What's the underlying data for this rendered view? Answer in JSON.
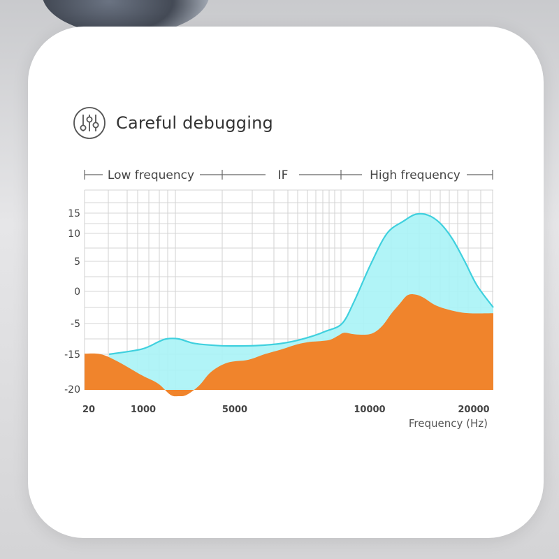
{
  "header": {
    "title": "Careful debugging",
    "icon": "sliders-icon"
  },
  "colors": {
    "high_curve": "#3fd0de",
    "high_fill": "#a9f3f6",
    "low_fill": "#f0842c",
    "grid": "#d4d4d4",
    "text": "#444444"
  },
  "chart_data": {
    "type": "area",
    "bands": [
      {
        "label": "Low frequency"
      },
      {
        "label": "IF"
      },
      {
        "label": "High frequency"
      }
    ],
    "x_ticks": [
      "20",
      "1000",
      "5000",
      "10000",
      "20000"
    ],
    "y_ticks": [
      "15",
      "10",
      "5",
      "0",
      "-5",
      "-15",
      "-20"
    ],
    "xlabel": "Frequency (Hz)",
    "ylabel": "",
    "grid": true,
    "series": [
      {
        "color": "cyan",
        "points": [
          [
            0.06,
            -15
          ],
          [
            0.14,
            -13.3
          ],
          [
            0.18,
            -11
          ],
          [
            0.2,
            -10
          ],
          [
            0.23,
            -10
          ],
          [
            0.27,
            -11.5
          ],
          [
            0.33,
            -12.2
          ],
          [
            0.38,
            -12.3
          ],
          [
            0.43,
            -12.1
          ],
          [
            0.48,
            -11.5
          ],
          [
            0.52,
            -10.5
          ],
          [
            0.56,
            -9
          ],
          [
            0.59,
            -7.5
          ],
          [
            0.63,
            -5
          ],
          [
            0.66,
            -1.5
          ],
          [
            0.7,
            4.5
          ],
          [
            0.74,
            10
          ],
          [
            0.78,
            13
          ],
          [
            0.81,
            14.7
          ],
          [
            0.84,
            14.5
          ],
          [
            0.87,
            12.5
          ],
          [
            0.9,
            9
          ],
          [
            0.93,
            5
          ],
          [
            0.96,
            1
          ],
          [
            1.0,
            -2.5
          ]
        ]
      },
      {
        "color": "orange",
        "points": [
          [
            0.0,
            -14.8
          ],
          [
            0.04,
            -15
          ],
          [
            0.08,
            -16
          ],
          [
            0.14,
            -18
          ],
          [
            0.18,
            -19.2
          ],
          [
            0.21,
            -20.8
          ],
          [
            0.23,
            -21
          ],
          [
            0.25,
            -20.8
          ],
          [
            0.28,
            -19.5
          ],
          [
            0.31,
            -17.5
          ],
          [
            0.35,
            -16.2
          ],
          [
            0.4,
            -15.8
          ],
          [
            0.44,
            -15
          ],
          [
            0.48,
            -13.5
          ],
          [
            0.52,
            -11.8
          ],
          [
            0.55,
            -11
          ],
          [
            0.57,
            -10.8
          ],
          [
            0.6,
            -10.3
          ],
          [
            0.62,
            -9
          ],
          [
            0.635,
            -8
          ],
          [
            0.66,
            -8.5
          ],
          [
            0.69,
            -8.6
          ],
          [
            0.71,
            -7.8
          ],
          [
            0.73,
            -5.5
          ],
          [
            0.75,
            -3.5
          ],
          [
            0.77,
            -2
          ],
          [
            0.79,
            -0.6
          ],
          [
            0.81,
            -0.5
          ],
          [
            0.83,
            -1
          ],
          [
            0.86,
            -2.2
          ],
          [
            0.9,
            -3
          ],
          [
            0.94,
            -3.4
          ],
          [
            1.0,
            -3.4
          ]
        ]
      }
    ]
  }
}
